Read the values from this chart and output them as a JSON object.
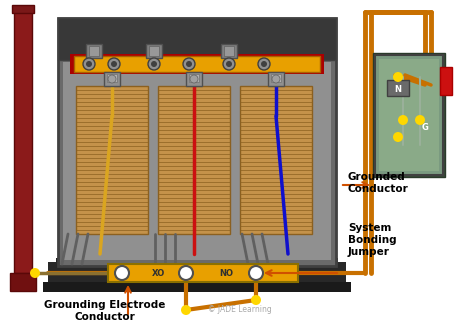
{
  "bg_color": "#ffffff",
  "subtitle": "© JADE Learning",
  "label_grounding": "Grounding Electrode\nConductor",
  "label_grounded": "Grounded\nConductor",
  "label_system": "System\nBonding\nJumper",
  "pole_color": "#8B1A1A",
  "pole_shadow": "#5A0808",
  "wire_orange": "#C87000",
  "wire_dark": "#8B7030",
  "dot_color": "#FFD700",
  "arr_color": "#D05000",
  "box_bg": "#6A6A6A",
  "box_edge": "#404040",
  "box_inner_bg": "#888888",
  "box_top_bg": "#383838",
  "coil_color": "#C4924A",
  "coil_line": "#8B6020",
  "bus_top_color": "#E8A000",
  "bus_top_border": "#AA0000",
  "bus_bot_color": "#E8A000",
  "bus_bot_edge": "#8B7000",
  "panel_color": "#7A9A80",
  "panel_edge": "#404040",
  "phase_colors": [
    "#DAA520",
    "#CC1010",
    "#1010CC"
  ],
  "gray_wire": "#606060",
  "connector_color": "#909090",
  "connector_inner": "#404040"
}
